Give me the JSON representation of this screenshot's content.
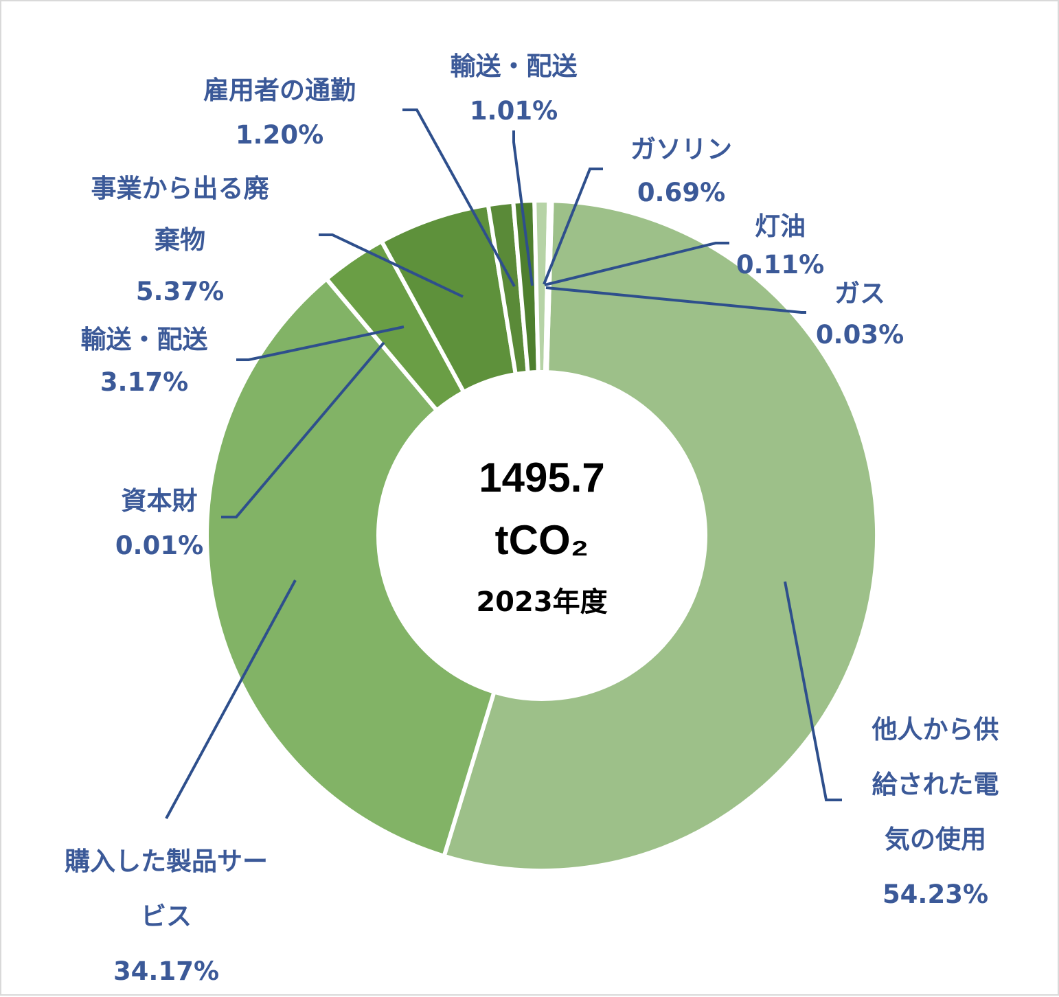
{
  "chart_data": {
    "type": "pie",
    "donut": true,
    "center": {
      "total": "1495.7",
      "unit": "tCO₂",
      "year": "2023年度"
    },
    "slices": [
      {
        "label_lines": [
          "他人から供",
          "給された電",
          "気の使用"
        ],
        "percent_text": "54.23%",
        "value": 54.23,
        "color": "#9dc089"
      },
      {
        "label_lines": [
          "購入した製品サー",
          "ビス"
        ],
        "percent_text": "34.17%",
        "value": 34.17,
        "color": "#82b366"
      },
      {
        "label_lines": [
          "資本財"
        ],
        "percent_text": "0.01%",
        "value": 0.01,
        "color": "#82b366"
      },
      {
        "label_lines": [
          "輸送・配送"
        ],
        "percent_text": "3.17%",
        "value": 3.17,
        "color": "#6a9e45"
      },
      {
        "label_lines": [
          "事業から出る廃",
          "棄物"
        ],
        "percent_text": "5.37%",
        "value": 5.37,
        "color": "#5e913b"
      },
      {
        "label_lines": [
          "雇用者の通勤"
        ],
        "percent_text": "1.20%",
        "value": 1.2,
        "color": "#5a8a38"
      },
      {
        "label_lines": [
          "輸送・配送"
        ],
        "percent_text": "1.01%",
        "value": 1.01,
        "color": "#4e7f2e"
      },
      {
        "label_lines": [
          "ガソリン"
        ],
        "percent_text": "0.69%",
        "value": 0.69,
        "color": "#b6d3a6"
      },
      {
        "label_lines": [
          "灯油"
        ],
        "percent_text": "0.11%",
        "value": 0.11,
        "color": "#9dc089"
      },
      {
        "label_lines": [
          "ガス"
        ],
        "percent_text": "0.03%",
        "value": 0.03,
        "color": "#9dc089"
      }
    ],
    "label_color": "#3b5998",
    "leader_color": "#2e4f8c"
  }
}
